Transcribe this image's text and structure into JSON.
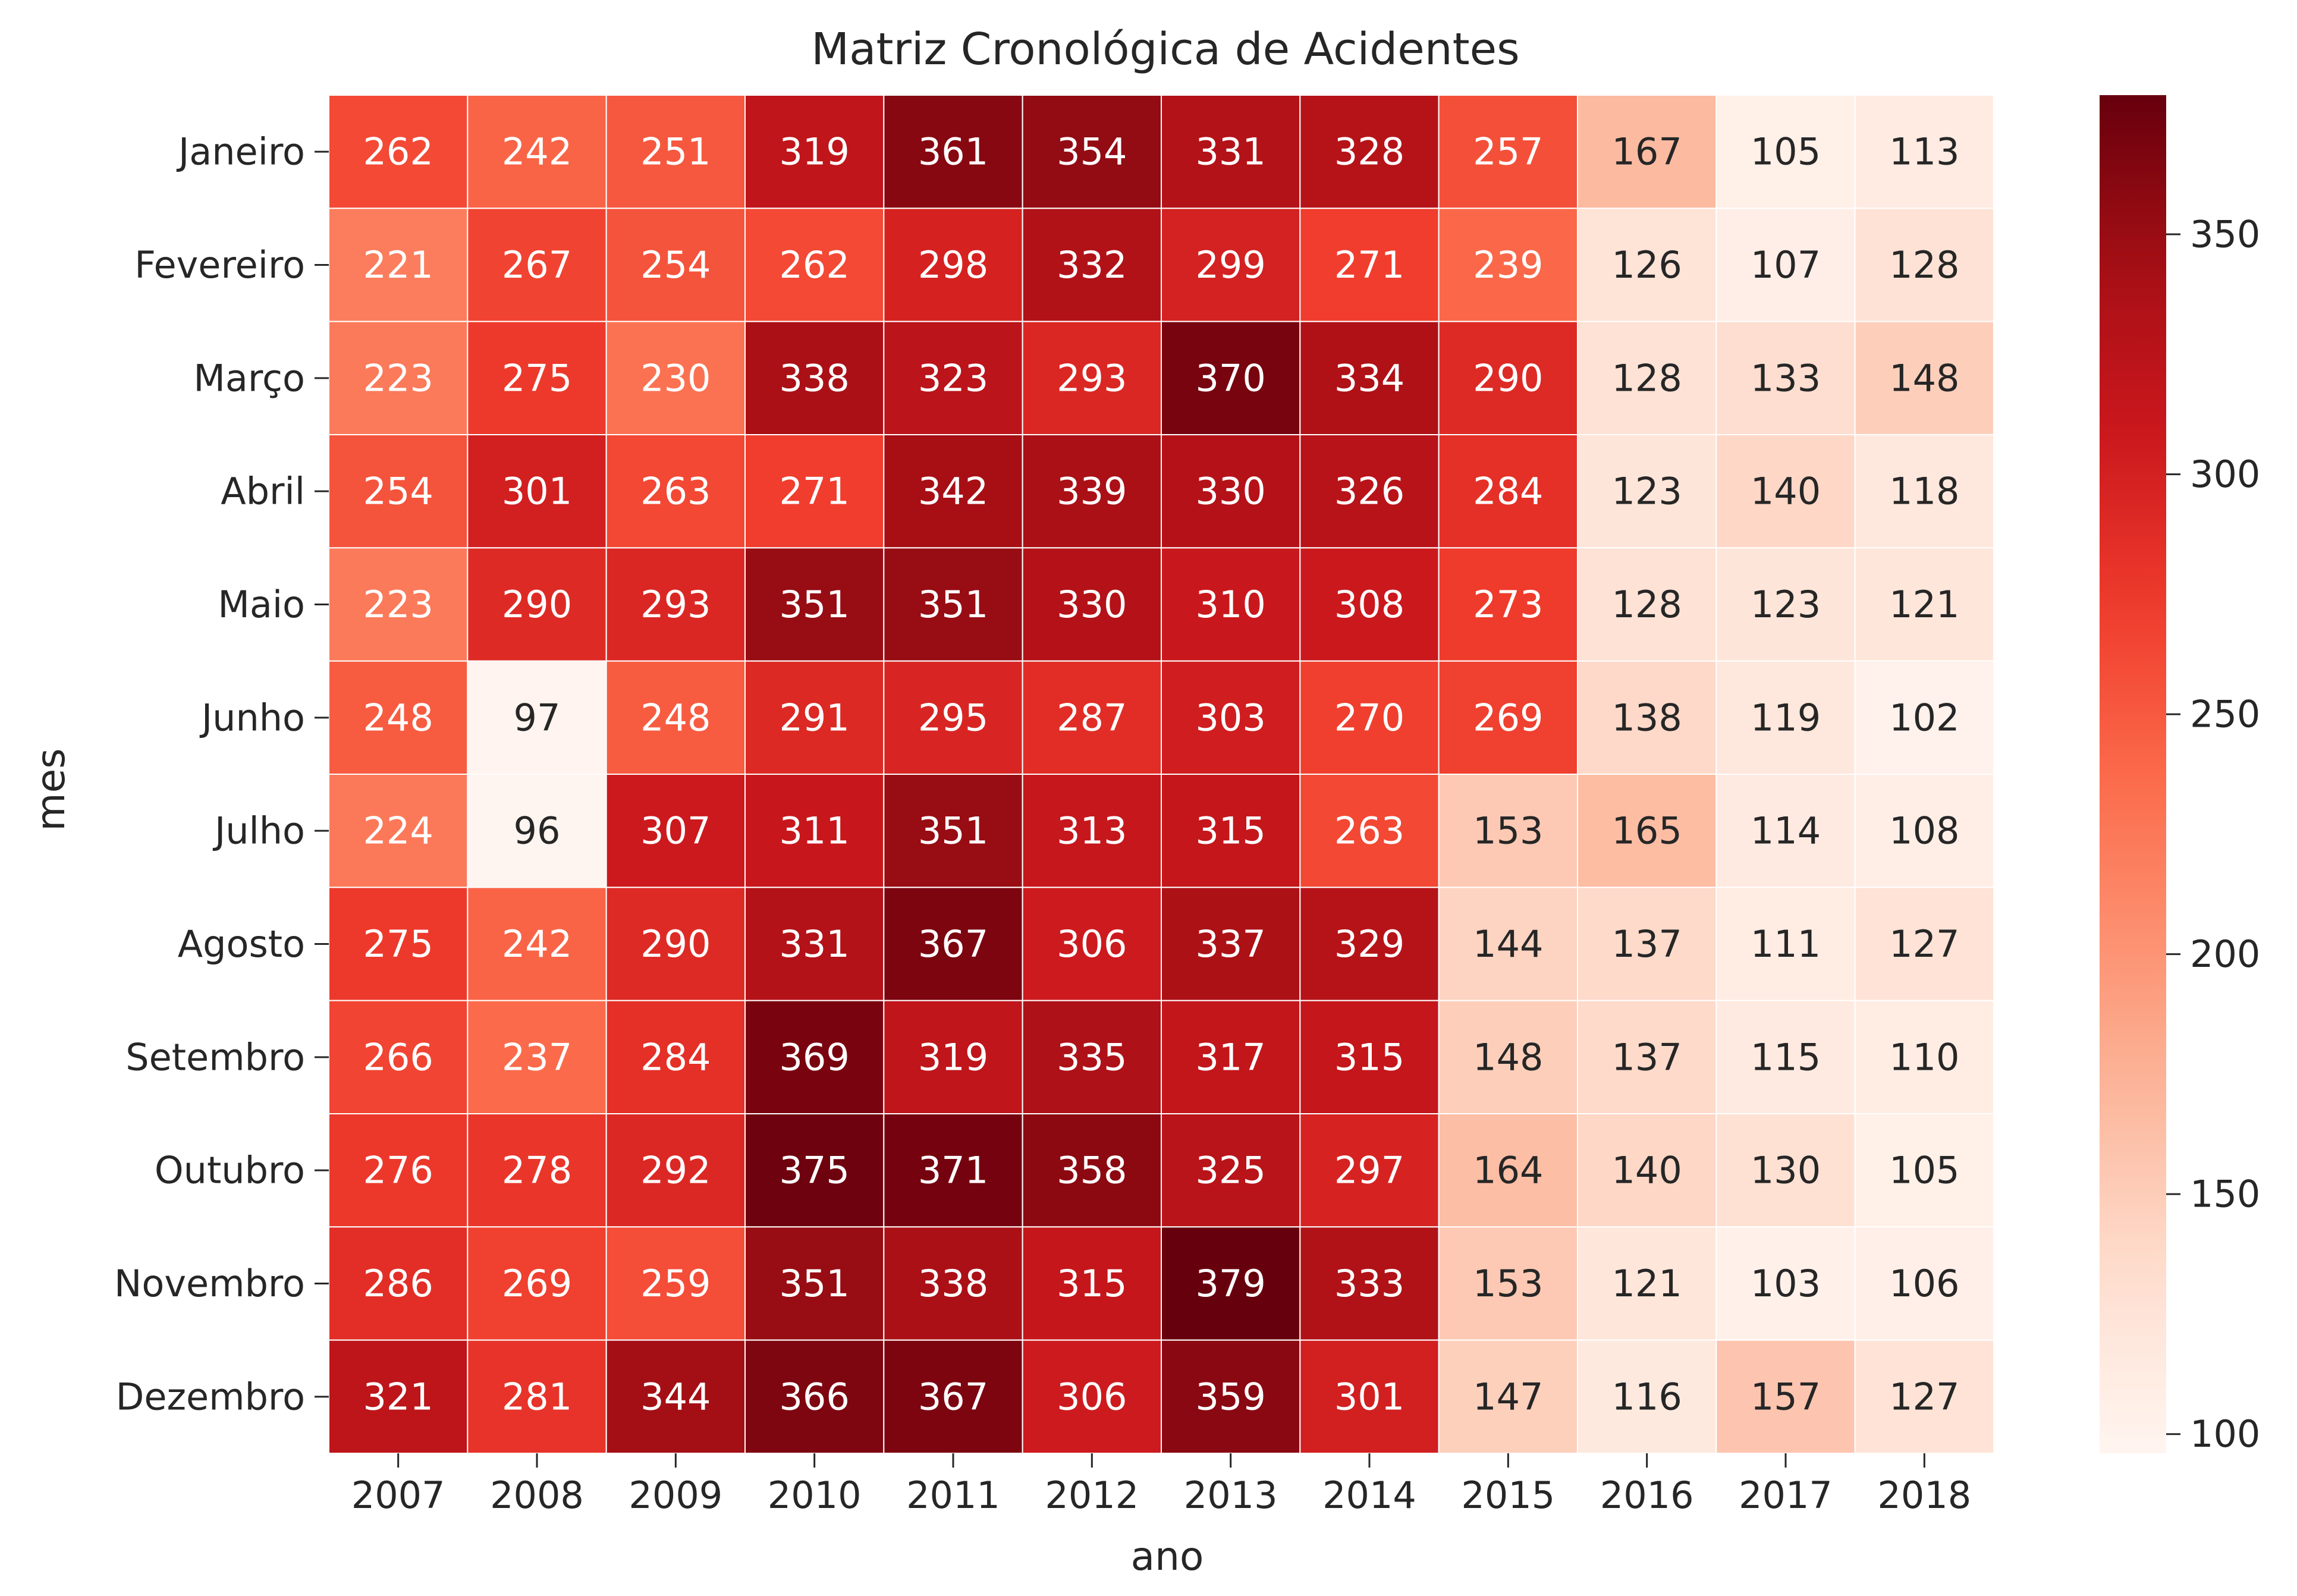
{
  "chart_data": {
    "type": "heatmap",
    "title": "Matriz Cronológica de Acidentes",
    "xlabel": "ano",
    "ylabel": "mes",
    "x_categories": [
      "2007",
      "2008",
      "2009",
      "2010",
      "2011",
      "2012",
      "2013",
      "2014",
      "2015",
      "2016",
      "2017",
      "2018"
    ],
    "y_categories": [
      "Janeiro",
      "Fevereiro",
      "Março",
      "Abril",
      "Maio",
      "Junho",
      "Julho",
      "Agosto",
      "Setembro",
      "Outubro",
      "Novembro",
      "Dezembro"
    ],
    "values": [
      [
        262,
        242,
        251,
        319,
        361,
        354,
        331,
        328,
        257,
        167,
        105,
        113
      ],
      [
        221,
        267,
        254,
        262,
        298,
        332,
        299,
        271,
        239,
        126,
        107,
        128
      ],
      [
        223,
        275,
        230,
        338,
        323,
        293,
        370,
        334,
        290,
        128,
        133,
        148
      ],
      [
        254,
        301,
        263,
        271,
        342,
        339,
        330,
        326,
        284,
        123,
        140,
        118
      ],
      [
        223,
        290,
        293,
        351,
        351,
        330,
        310,
        308,
        273,
        128,
        123,
        121
      ],
      [
        248,
        97,
        248,
        291,
        295,
        287,
        303,
        270,
        269,
        138,
        119,
        102
      ],
      [
        224,
        96,
        307,
        311,
        351,
        313,
        315,
        263,
        153,
        165,
        114,
        108
      ],
      [
        275,
        242,
        290,
        331,
        367,
        306,
        337,
        329,
        144,
        137,
        111,
        127
      ],
      [
        266,
        237,
        284,
        369,
        319,
        335,
        317,
        315,
        148,
        137,
        115,
        110
      ],
      [
        276,
        278,
        292,
        375,
        371,
        358,
        325,
        297,
        164,
        140,
        130,
        105
      ],
      [
        286,
        269,
        259,
        351,
        338,
        315,
        379,
        333,
        153,
        121,
        103,
        106
      ],
      [
        321,
        281,
        344,
        366,
        367,
        306,
        359,
        301,
        147,
        116,
        157,
        127
      ]
    ],
    "colorbar": {
      "colormap": "Reds",
      "vmin": 96,
      "vmax": 379,
      "ticks": [
        "100",
        "150",
        "200",
        "250",
        "300",
        "350"
      ]
    }
  }
}
